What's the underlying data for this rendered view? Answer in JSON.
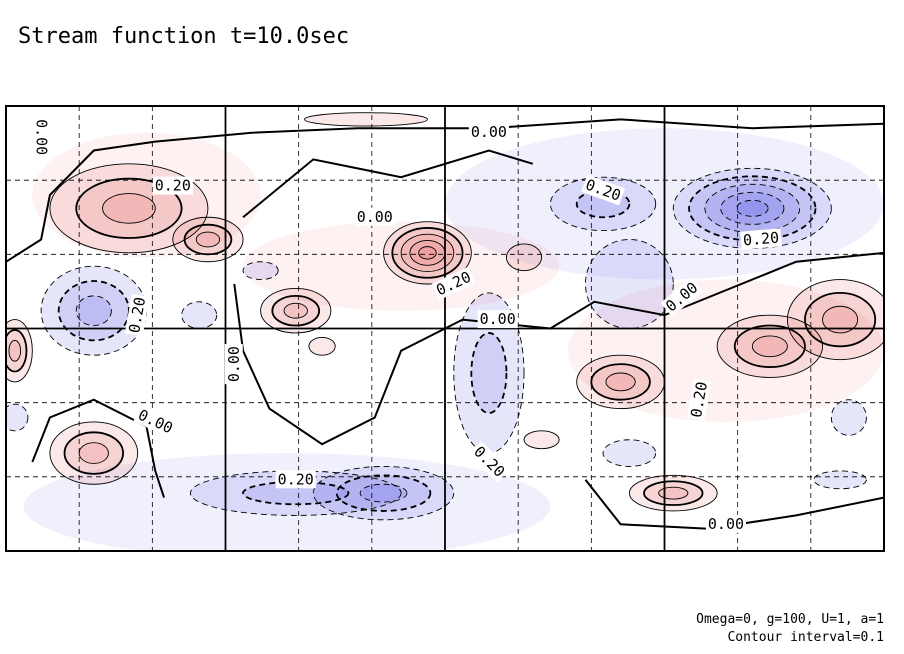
{
  "chart_data": {
    "type": "contour",
    "title": "Stream function t=10.0sec",
    "contour_interval": 0.1,
    "levels": [
      -0.4,
      -0.3,
      -0.2,
      -0.1,
      0.0,
      0.1,
      0.2,
      0.3,
      0.4
    ],
    "colors": {
      "positive": "#e05050",
      "negative": "#4040e0",
      "zero_line": "#000000",
      "grid": "#000000"
    },
    "grid": {
      "major_columns": 4,
      "major_rows": 2,
      "minor_columns": 12,
      "minor_rows": 6
    },
    "contour_labels": [
      {
        "text": "0.00",
        "x": 0.04,
        "y": 0.07,
        "rotate": 90
      },
      {
        "text": "0.20",
        "x": 0.19,
        "y": 0.18,
        "rotate": 0
      },
      {
        "text": "0.00",
        "x": 0.42,
        "y": 0.25,
        "rotate": 0
      },
      {
        "text": "0.00",
        "x": 0.55,
        "y": 0.06,
        "rotate": 0
      },
      {
        "text": "0.20",
        "x": 0.51,
        "y": 0.4,
        "rotate": -25
      },
      {
        "text": "0.20",
        "x": 0.68,
        "y": 0.19,
        "rotate": 20
      },
      {
        "text": "0.20",
        "x": 0.86,
        "y": 0.3,
        "rotate": -5
      },
      {
        "text": "0.00",
        "x": 0.77,
        "y": 0.43,
        "rotate": -40
      },
      {
        "text": "0.20",
        "x": 0.15,
        "y": 0.47,
        "rotate": -80
      },
      {
        "text": "0.00",
        "x": 0.56,
        "y": 0.48,
        "rotate": 0
      },
      {
        "text": "0.00",
        "x": 0.26,
        "y": 0.58,
        "rotate": -90
      },
      {
        "text": "0.20",
        "x": 0.79,
        "y": 0.66,
        "rotate": -80
      },
      {
        "text": "0.00",
        "x": 0.17,
        "y": 0.71,
        "rotate": 25
      },
      {
        "text": "0.20",
        "x": 0.55,
        "y": 0.8,
        "rotate": 45
      },
      {
        "text": "0.20",
        "x": 0.33,
        "y": 0.84,
        "rotate": 0
      },
      {
        "text": "0.00",
        "x": 0.82,
        "y": 0.94,
        "rotate": 0
      }
    ],
    "centers": [
      {
        "x": 0.14,
        "y": 0.23,
        "rx": 0.09,
        "ry": 0.1,
        "value": 0.35
      },
      {
        "x": 0.23,
        "y": 0.3,
        "rx": 0.04,
        "ry": 0.05,
        "value": 0.25
      },
      {
        "x": 0.48,
        "y": 0.33,
        "rx": 0.05,
        "ry": 0.07,
        "value": 0.45
      },
      {
        "x": 0.59,
        "y": 0.34,
        "rx": 0.02,
        "ry": 0.03,
        "value": 0.15
      },
      {
        "x": 0.33,
        "y": 0.46,
        "rx": 0.04,
        "ry": 0.05,
        "value": 0.25
      },
      {
        "x": 0.1,
        "y": 0.46,
        "rx": 0.06,
        "ry": 0.1,
        "value": -0.35
      },
      {
        "x": 0.22,
        "y": 0.47,
        "rx": 0.02,
        "ry": 0.03,
        "value": -0.15
      },
      {
        "x": 0.29,
        "y": 0.37,
        "rx": 0.02,
        "ry": 0.02,
        "value": -0.12
      },
      {
        "x": 0.85,
        "y": 0.23,
        "rx": 0.09,
        "ry": 0.09,
        "value": -0.45
      },
      {
        "x": 0.68,
        "y": 0.22,
        "rx": 0.06,
        "ry": 0.06,
        "value": -0.2
      },
      {
        "x": 0.71,
        "y": 0.4,
        "rx": 0.05,
        "ry": 0.1,
        "value": -0.15
      },
      {
        "x": 0.95,
        "y": 0.48,
        "rx": 0.06,
        "ry": 0.09,
        "value": 0.35
      },
      {
        "x": 0.87,
        "y": 0.54,
        "rx": 0.06,
        "ry": 0.07,
        "value": 0.3
      },
      {
        "x": 0.7,
        "y": 0.62,
        "rx": 0.05,
        "ry": 0.06,
        "value": 0.3
      },
      {
        "x": 0.76,
        "y": 0.87,
        "rx": 0.05,
        "ry": 0.04,
        "value": 0.25
      },
      {
        "x": 0.71,
        "y": 0.78,
        "rx": 0.03,
        "ry": 0.03,
        "value": -0.1
      },
      {
        "x": 0.61,
        "y": 0.75,
        "rx": 0.02,
        "ry": 0.02,
        "value": 0.1
      },
      {
        "x": 0.1,
        "y": 0.78,
        "rx": 0.05,
        "ry": 0.07,
        "value": 0.3
      },
      {
        "x": 0.01,
        "y": 0.55,
        "rx": 0.02,
        "ry": 0.07,
        "value": 0.25
      },
      {
        "x": 0.01,
        "y": 0.7,
        "rx": 0.015,
        "ry": 0.03,
        "value": -0.1
      },
      {
        "x": 0.43,
        "y": 0.87,
        "rx": 0.08,
        "ry": 0.06,
        "value": -0.3
      },
      {
        "x": 0.33,
        "y": 0.87,
        "rx": 0.12,
        "ry": 0.05,
        "value": -0.2
      },
      {
        "x": 0.55,
        "y": 0.6,
        "rx": 0.04,
        "ry": 0.18,
        "value": -0.2
      },
      {
        "x": 0.41,
        "y": 0.03,
        "rx": 0.07,
        "ry": 0.015,
        "value": 0.1
      },
      {
        "x": 0.36,
        "y": 0.54,
        "rx": 0.015,
        "ry": 0.02,
        "value": 0.1
      },
      {
        "x": 0.96,
        "y": 0.7,
        "rx": 0.02,
        "ry": 0.04,
        "value": -0.12
      },
      {
        "x": 0.95,
        "y": 0.84,
        "rx": 0.03,
        "ry": 0.02,
        "value": -0.12
      }
    ]
  },
  "footer": {
    "params": "Omega=0, g=100, U=1, a=1",
    "interval": "Contour interval=0.1"
  }
}
